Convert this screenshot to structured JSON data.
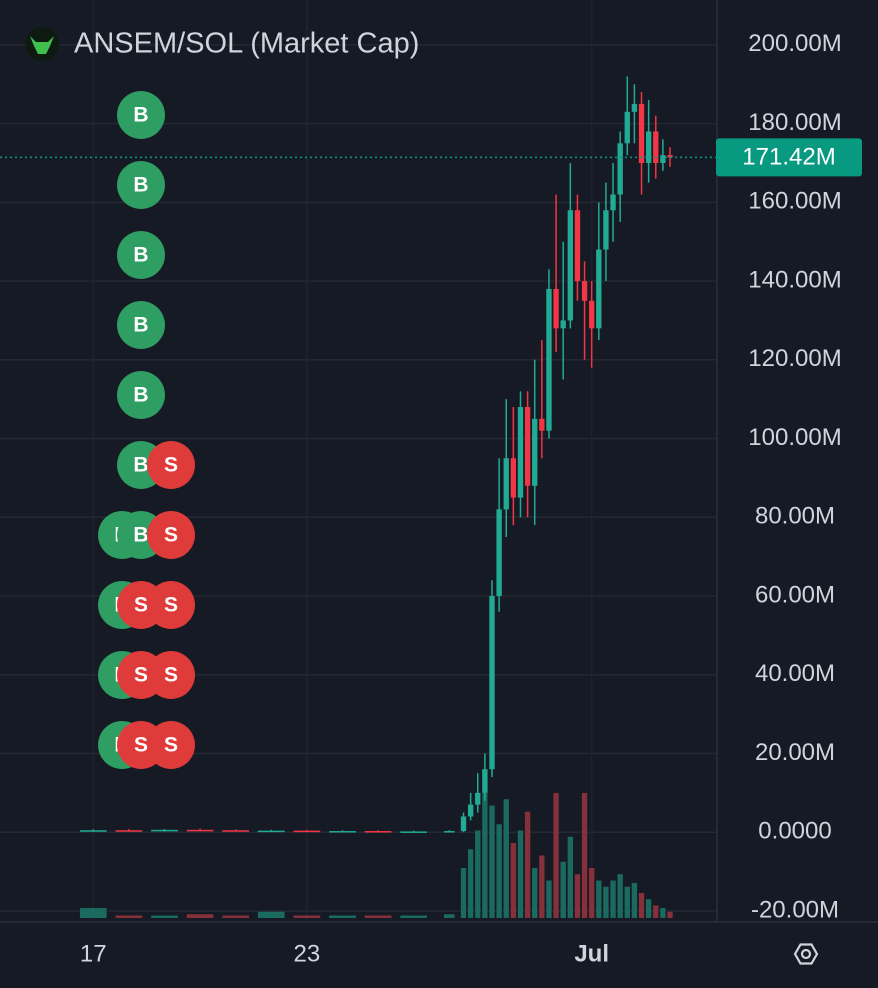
{
  "chart_data": {
    "type": "candlestick",
    "title": "ANSEM/SOL (Market Cap)",
    "x": [
      17,
      18,
      19,
      20,
      21,
      22,
      23,
      24,
      25,
      26,
      27,
      27.4,
      27.6,
      27.8,
      28.0,
      28.2,
      28.4,
      28.6,
      28.8,
      29.0,
      29.2,
      29.4,
      29.6,
      29.8,
      30.0,
      30.2,
      30.4,
      30.6,
      30.8,
      31.0,
      31.2,
      31.4,
      31.6,
      31.8,
      32.0,
      32.2,
      32.4,
      32.6,
      32.8,
      33.0,
      33.2
    ],
    "open": [
      0.3,
      0.5,
      0.4,
      0.6,
      0.5,
      0.4,
      0.4,
      0.3,
      0.3,
      0.2,
      0.2,
      0.3,
      4,
      7,
      10,
      16,
      60,
      82,
      95,
      85,
      108,
      88,
      105,
      102,
      138,
      128,
      130,
      158,
      140,
      135,
      128,
      148,
      158,
      162,
      175,
      183,
      185,
      170,
      178,
      170,
      172
    ],
    "close": [
      0.5,
      0.4,
      0.6,
      0.5,
      0.4,
      0.4,
      0.3,
      0.3,
      0.2,
      0.2,
      0.3,
      4,
      7,
      10,
      16,
      60,
      82,
      95,
      85,
      108,
      88,
      105,
      102,
      138,
      128,
      130,
      158,
      140,
      135,
      128,
      148,
      158,
      162,
      175,
      183,
      185,
      170,
      178,
      170,
      172,
      171.42
    ],
    "high": [
      0.7,
      0.8,
      0.8,
      0.9,
      0.7,
      0.6,
      0.6,
      0.5,
      0.5,
      0.4,
      0.5,
      5,
      10,
      15,
      20,
      64,
      95,
      110,
      108,
      112,
      112,
      120,
      125,
      143,
      162,
      150,
      170,
      162,
      145,
      140,
      160,
      165,
      170,
      178,
      192,
      190,
      188,
      186,
      182,
      176,
      174
    ],
    "low": [
      0.1,
      0.2,
      0.2,
      0.3,
      0.2,
      0.2,
      0.1,
      0.1,
      0.1,
      0.1,
      0.1,
      0,
      3,
      5,
      8,
      14,
      56,
      75,
      78,
      80,
      80,
      78,
      95,
      100,
      122,
      115,
      128,
      135,
      120,
      118,
      125,
      140,
      150,
      155,
      172,
      175,
      162,
      165,
      166,
      168,
      169
    ],
    "volume": [
      8,
      2,
      2,
      3,
      2,
      5,
      2,
      2,
      2,
      2,
      3,
      40,
      55,
      70,
      100,
      90,
      75,
      95,
      60,
      70,
      85,
      40,
      50,
      30,
      100,
      45,
      65,
      35,
      100,
      40,
      30,
      25,
      30,
      35,
      25,
      28,
      20,
      15,
      10,
      8,
      5
    ],
    "up_color": "#22ab94",
    "down_color": "#f23645",
    "up_volume_color": "#1b6a5f",
    "down_volume_color": "#86303c",
    "xlim": [
      14.38,
      34.52
    ],
    "xticks": [
      {
        "value": 17,
        "label": "17"
      },
      {
        "value": 23,
        "label": "23"
      },
      {
        "value": 31,
        "label": "Jul"
      }
    ],
    "ylim": [
      -22.3,
      211.4
    ],
    "yticks": [
      {
        "value": -20,
        "label": "-20.00M"
      },
      {
        "value": 0,
        "label": "0.0000"
      },
      {
        "value": 20,
        "label": "20.00M"
      },
      {
        "value": 40,
        "label": "40.00M"
      },
      {
        "value": 60,
        "label": "60.00M"
      },
      {
        "value": 80,
        "label": "80.00M"
      },
      {
        "value": 100,
        "label": "100.00M"
      },
      {
        "value": 120,
        "label": "120.00M"
      },
      {
        "value": 140,
        "label": "140.00M"
      },
      {
        "value": 160,
        "label": "160.00M"
      },
      {
        "value": 180,
        "label": "180.00M"
      },
      {
        "value": 200,
        "label": "200.00M"
      }
    ],
    "grid": true,
    "last_price": {
      "value": 171.42,
      "label": "171.42M"
    },
    "price_line_color": "#089981",
    "markers": [
      [
        {
          "text": "B",
          "color": "#2f9e62"
        }
      ],
      [
        {
          "text": "B",
          "color": "#2f9e62"
        }
      ],
      [
        {
          "text": "B",
          "color": "#2f9e62"
        }
      ],
      [
        {
          "text": "B",
          "color": "#2f9e62"
        }
      ],
      [
        {
          "text": "B",
          "color": "#2f9e62"
        }
      ],
      [
        {
          "text": "B",
          "color": "#2f9e62"
        },
        {
          "text": "S",
          "color": "#e03b3b"
        }
      ],
      [
        {
          "text": "B",
          "color": "#2f9e62"
        },
        {
          "text": "B",
          "color": "#2f9e62"
        },
        {
          "text": "S",
          "color": "#e03b3b"
        }
      ],
      [
        {
          "text": "B",
          "color": "#2f9e62"
        },
        {
          "text": "S",
          "color": "#e03b3b"
        },
        {
          "text": "S",
          "color": "#e03b3b"
        }
      ],
      [
        {
          "text": "B",
          "color": "#2f9e62"
        },
        {
          "text": "S",
          "color": "#e03b3b"
        },
        {
          "text": "S",
          "color": "#e03b3b"
        }
      ],
      [
        {
          "text": "B",
          "color": "#2f9e62"
        },
        {
          "text": "S",
          "color": "#e03b3b"
        },
        {
          "text": "S",
          "color": "#e03b3b"
        }
      ]
    ]
  }
}
